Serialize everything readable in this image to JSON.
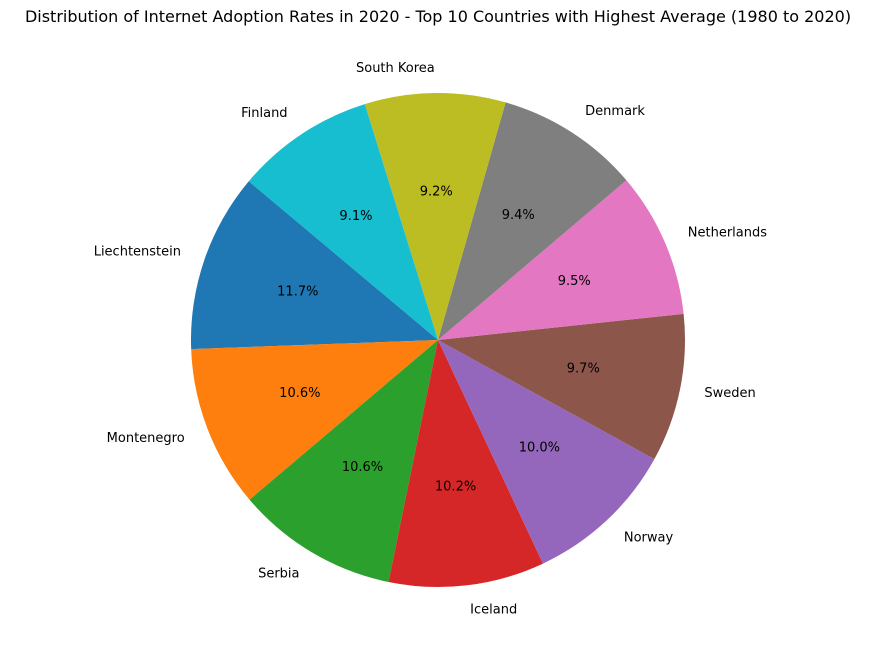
{
  "chart_data": {
    "type": "pie",
    "title": "Distribution of Internet Adoption Rates in 2020 - Top 10 Countries with Highest Average (1980 to 2020)",
    "start_angle_deg": 140,
    "direction": "counterclockwise",
    "legend": "none",
    "slices": [
      {
        "label": "Liechtenstein",
        "pct_text": "11.7%",
        "value": 11.7,
        "color": "#1f77b4"
      },
      {
        "label": "Montenegro",
        "pct_text": "10.6%",
        "value": 10.6,
        "color": "#ff7f0e"
      },
      {
        "label": "Serbia",
        "pct_text": "10.6%",
        "value": 10.6,
        "color": "#2ca02c"
      },
      {
        "label": "Iceland",
        "pct_text": "10.2%",
        "value": 10.2,
        "color": "#d62728"
      },
      {
        "label": "Norway",
        "pct_text": "10.0%",
        "value": 10.0,
        "color": "#9467bd"
      },
      {
        "label": "Sweden",
        "pct_text": "9.7%",
        "value": 9.7,
        "color": "#8c564b"
      },
      {
        "label": "Netherlands",
        "pct_text": "9.5%",
        "value": 9.5,
        "color": "#e377c2"
      },
      {
        "label": "Denmark",
        "pct_text": "9.4%",
        "value": 9.4,
        "color": "#7f7f7f"
      },
      {
        "label": "South Korea",
        "pct_text": "9.2%",
        "value": 9.2,
        "color": "#bcbd22"
      },
      {
        "label": "Finland",
        "pct_text": "9.1%",
        "value": 9.1,
        "color": "#17becf"
      }
    ]
  }
}
